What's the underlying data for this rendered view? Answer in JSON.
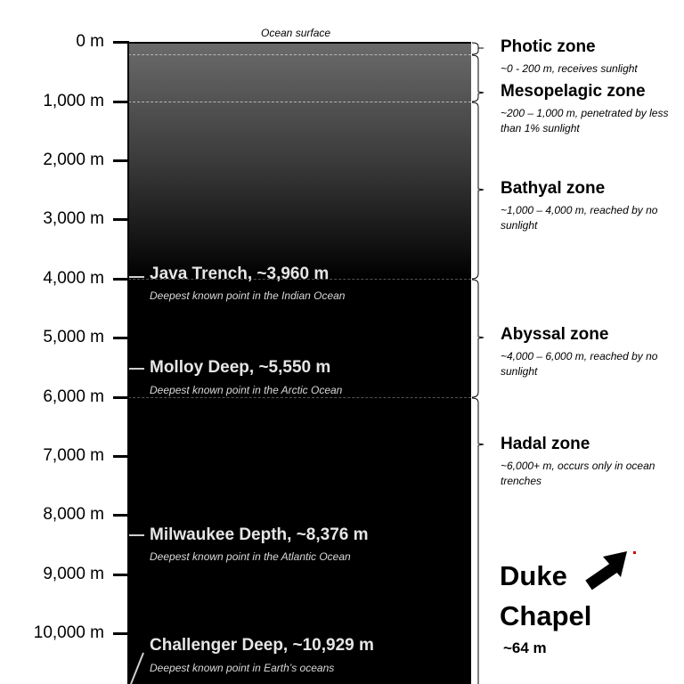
{
  "surface_label": "Ocean surface",
  "depth_ticks": [
    "0 m",
    "1,000 m",
    "2,000 m",
    "3,000 m",
    "4,000 m",
    "5,000 m",
    "6,000 m",
    "7,000 m",
    "8,000 m",
    "9,000 m",
    "10,000 m"
  ],
  "zones": [
    {
      "name": "Photic zone",
      "desc": "~0 - 200  m, receives sunlight"
    },
    {
      "name": "Mesopelagic zone",
      "desc": "~200 – 1,000  m, penetrated by less than 1% sunlight"
    },
    {
      "name": "Bathyal zone",
      "desc": "~1,000 – 4,000  m, reached by no sunlight"
    },
    {
      "name": "Abyssal zone",
      "desc": "~4,000 – 6,000  m, reached by no sunlight"
    },
    {
      "name": "Hadal zone",
      "desc": "~6,000+  m, occurs only in ocean trenches"
    }
  ],
  "trenches": [
    {
      "name": "Java Trench, ~3,960 m",
      "desc": "Deepest known point in the Indian Ocean"
    },
    {
      "name": "Molloy Deep, ~5,550 m",
      "desc": "Deepest known point in the Arctic Ocean"
    },
    {
      "name": "Milwaukee Depth, ~8,376 m",
      "desc": "Deepest known point in the Atlantic Ocean"
    },
    {
      "name": "Challenger Deep, ~10,929 m",
      "desc": "Deepest known point in Earth’s oceans"
    }
  ],
  "comparison": {
    "title_line1": "Duke",
    "title_line2": "Chapel",
    "height": "~64 m",
    "dot_color": "#d40000"
  },
  "colors": {
    "water_top": "#6b6b6b",
    "water_deep": "#000000",
    "trench_text": "#e6e6e6"
  }
}
